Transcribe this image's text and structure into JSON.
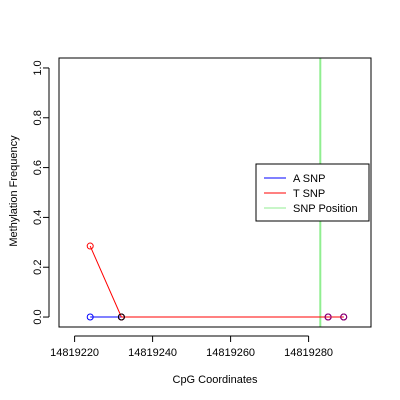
{
  "chart_data": {
    "type": "line",
    "title": "",
    "xlabel": "CpG Coordinates",
    "ylabel": "Methylation Frequency",
    "xlim": [
      14819216,
      14819296
    ],
    "ylim": [
      -0.04,
      1.04
    ],
    "x_ticks": [
      14819220,
      14819240,
      14819260,
      14819280
    ],
    "y_ticks": [
      0.0,
      0.2,
      0.4,
      0.6,
      0.8,
      1.0
    ],
    "x_tick_labels": [
      "14819220",
      "14819240",
      "14819260",
      "14819280"
    ],
    "y_tick_labels": [
      "0.0",
      "0.2",
      "0.4",
      "0.6",
      "0.8",
      "1.0"
    ],
    "grid": false,
    "legend_position": "right",
    "series": [
      {
        "name": "A SNP",
        "color": "#0000ff",
        "points": [
          {
            "x": 14819224,
            "y": 0.0
          },
          {
            "x": 14819232,
            "y": 0.0
          },
          {
            "x": 14819285,
            "y": 0.0
          },
          {
            "x": 14819289,
            "y": 0.0
          }
        ]
      },
      {
        "name": "T SNP",
        "color": "#ff0000",
        "points": [
          {
            "x": 14819224,
            "y": 0.285
          },
          {
            "x": 14819232,
            "y": 0.0
          },
          {
            "x": 14819285,
            "y": 0.0
          },
          {
            "x": 14819289,
            "y": 0.0
          }
        ]
      }
    ],
    "snp_position": {
      "name": "SNP Position",
      "color": "#90ee90",
      "x": 14819283
    },
    "extra_marks": [
      {
        "x": 14819232,
        "y": 0.0,
        "color": "#000000"
      },
      {
        "x": 14819285,
        "y": 0.0,
        "color": "#800080"
      },
      {
        "x": 14819289,
        "y": 0.0,
        "color": "#800080"
      }
    ]
  }
}
